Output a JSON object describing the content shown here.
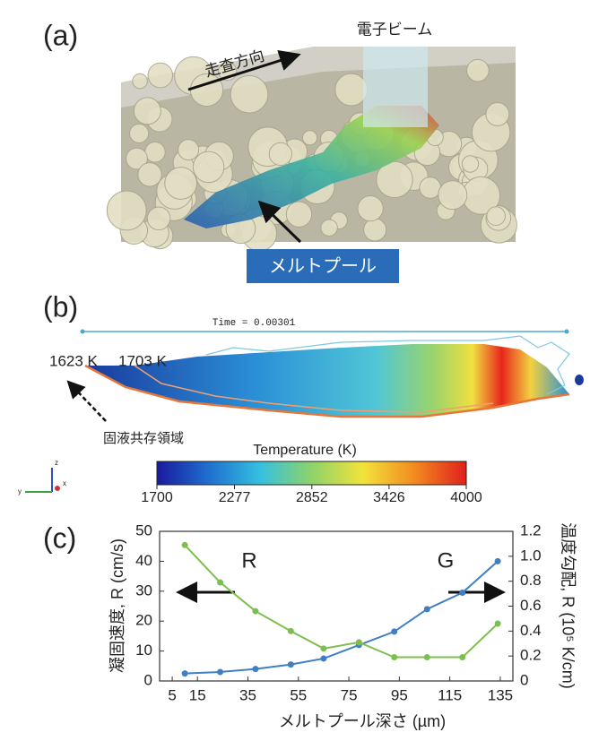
{
  "panel_a": {
    "label": "(a)",
    "beam_label": "電子ビーム",
    "scan_label": "走査方向",
    "pool_label": "メルトプール"
  },
  "panel_b": {
    "label": "(b)",
    "time_text": "Time = 0.00301",
    "iso_labels": [
      "1623 K",
      "1703 K"
    ],
    "mushy_label": "固液共存領域",
    "triad_labels": [
      "z",
      "x",
      "y"
    ]
  },
  "colorbar": {
    "title": "Temperature (K)",
    "lim": [
      1700,
      4000
    ],
    "ticks": [
      1700,
      2277,
      2852,
      3426,
      4000
    ],
    "colors": [
      "#1a1a9e",
      "#1e6fd0",
      "#35c0e0",
      "#8ed36a",
      "#f2e33a",
      "#f28a20",
      "#e0201c"
    ]
  },
  "chart_data": {
    "type": "line",
    "panel_label": "(c)",
    "x_label": "メルトプール深さ (µm)",
    "y_label": "凝固速度, R (cm/s)",
    "y2_label": "温度勾配, R (10⁵ K/cm)",
    "x": [
      10,
      24,
      38,
      52,
      65,
      79,
      93,
      106,
      120,
      134
    ],
    "series": [
      {
        "name": "R",
        "color": "#3f7fc2",
        "values": [
          2.5,
          3,
          4,
          5.5,
          7.5,
          12,
          16.5,
          24,
          29.5,
          40
        ]
      },
      {
        "name": "G",
        "color": "#7dbf4e",
        "axis": "y2",
        "values": [
          1.09,
          0.79,
          0.56,
          0.4,
          0.26,
          0.31,
          0.19,
          0.19,
          0.19,
          0.46
        ]
      }
    ],
    "xlim": [
      0,
      140
    ],
    "xticks": [
      5,
      15,
      35,
      55,
      75,
      95,
      115,
      135
    ],
    "ylim": [
      0,
      50
    ],
    "yticks": [
      0,
      10,
      20,
      30,
      40,
      50
    ],
    "y2lim": [
      0,
      1.2
    ],
    "y2ticks": [
      0,
      0.2,
      0.4,
      0.6,
      0.8,
      {
        "value": 1,
        "label": "1.0"
      },
      1.2
    ]
  }
}
